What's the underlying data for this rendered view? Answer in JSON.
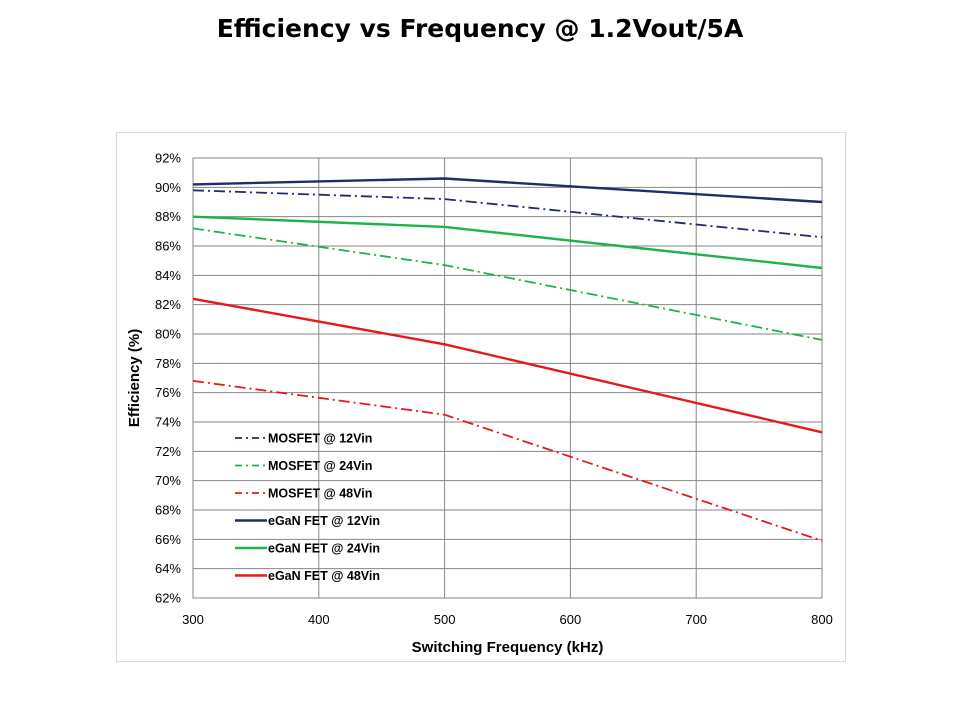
{
  "page": {
    "title": "Efficiency vs Frequency @ 1.2Vout/5A"
  },
  "chart_data": {
    "type": "line",
    "title": "Efficiency vs Frequency @ 1.2Vout/5A",
    "xlabel": "Switching Frequency (kHz)",
    "ylabel": "Efficiency (%)",
    "xlim": [
      300,
      800
    ],
    "ylim": [
      62,
      92
    ],
    "x_ticks": [
      300,
      400,
      500,
      600,
      700,
      800
    ],
    "y_ticks": [
      62,
      64,
      66,
      68,
      70,
      72,
      74,
      76,
      78,
      80,
      82,
      84,
      86,
      88,
      90,
      92
    ],
    "y_tick_suffix": "%",
    "grid": true,
    "legend_position": "bottom-left",
    "x": [
      300,
      500,
      800
    ],
    "series": [
      {
        "name": "MOSFET @ 12Vin",
        "color": "#1f2d6b",
        "style": "dash-dot",
        "values": [
          89.8,
          89.2,
          86.6
        ]
      },
      {
        "name": "MOSFET @ 24Vin",
        "color": "#1fb24a",
        "style": "dash-dot",
        "values": [
          87.2,
          84.7,
          79.6
        ]
      },
      {
        "name": "MOSFET @ 48Vin",
        "color": "#e31a1c",
        "style": "dash-dot",
        "values": [
          76.8,
          74.5,
          65.9
        ]
      },
      {
        "name": "eGaN FET @ 12Vin",
        "color": "#1f2d6b",
        "style": "solid",
        "values": [
          90.2,
          90.6,
          89.0
        ]
      },
      {
        "name": "eGaN FET @ 24Vin",
        "color": "#1fb24a",
        "style": "solid",
        "values": [
          88.0,
          87.3,
          84.5
        ]
      },
      {
        "name": "eGaN FET @ 48Vin",
        "color": "#e31a1c",
        "style": "solid",
        "values": [
          82.4,
          79.3,
          73.3
        ]
      }
    ]
  }
}
